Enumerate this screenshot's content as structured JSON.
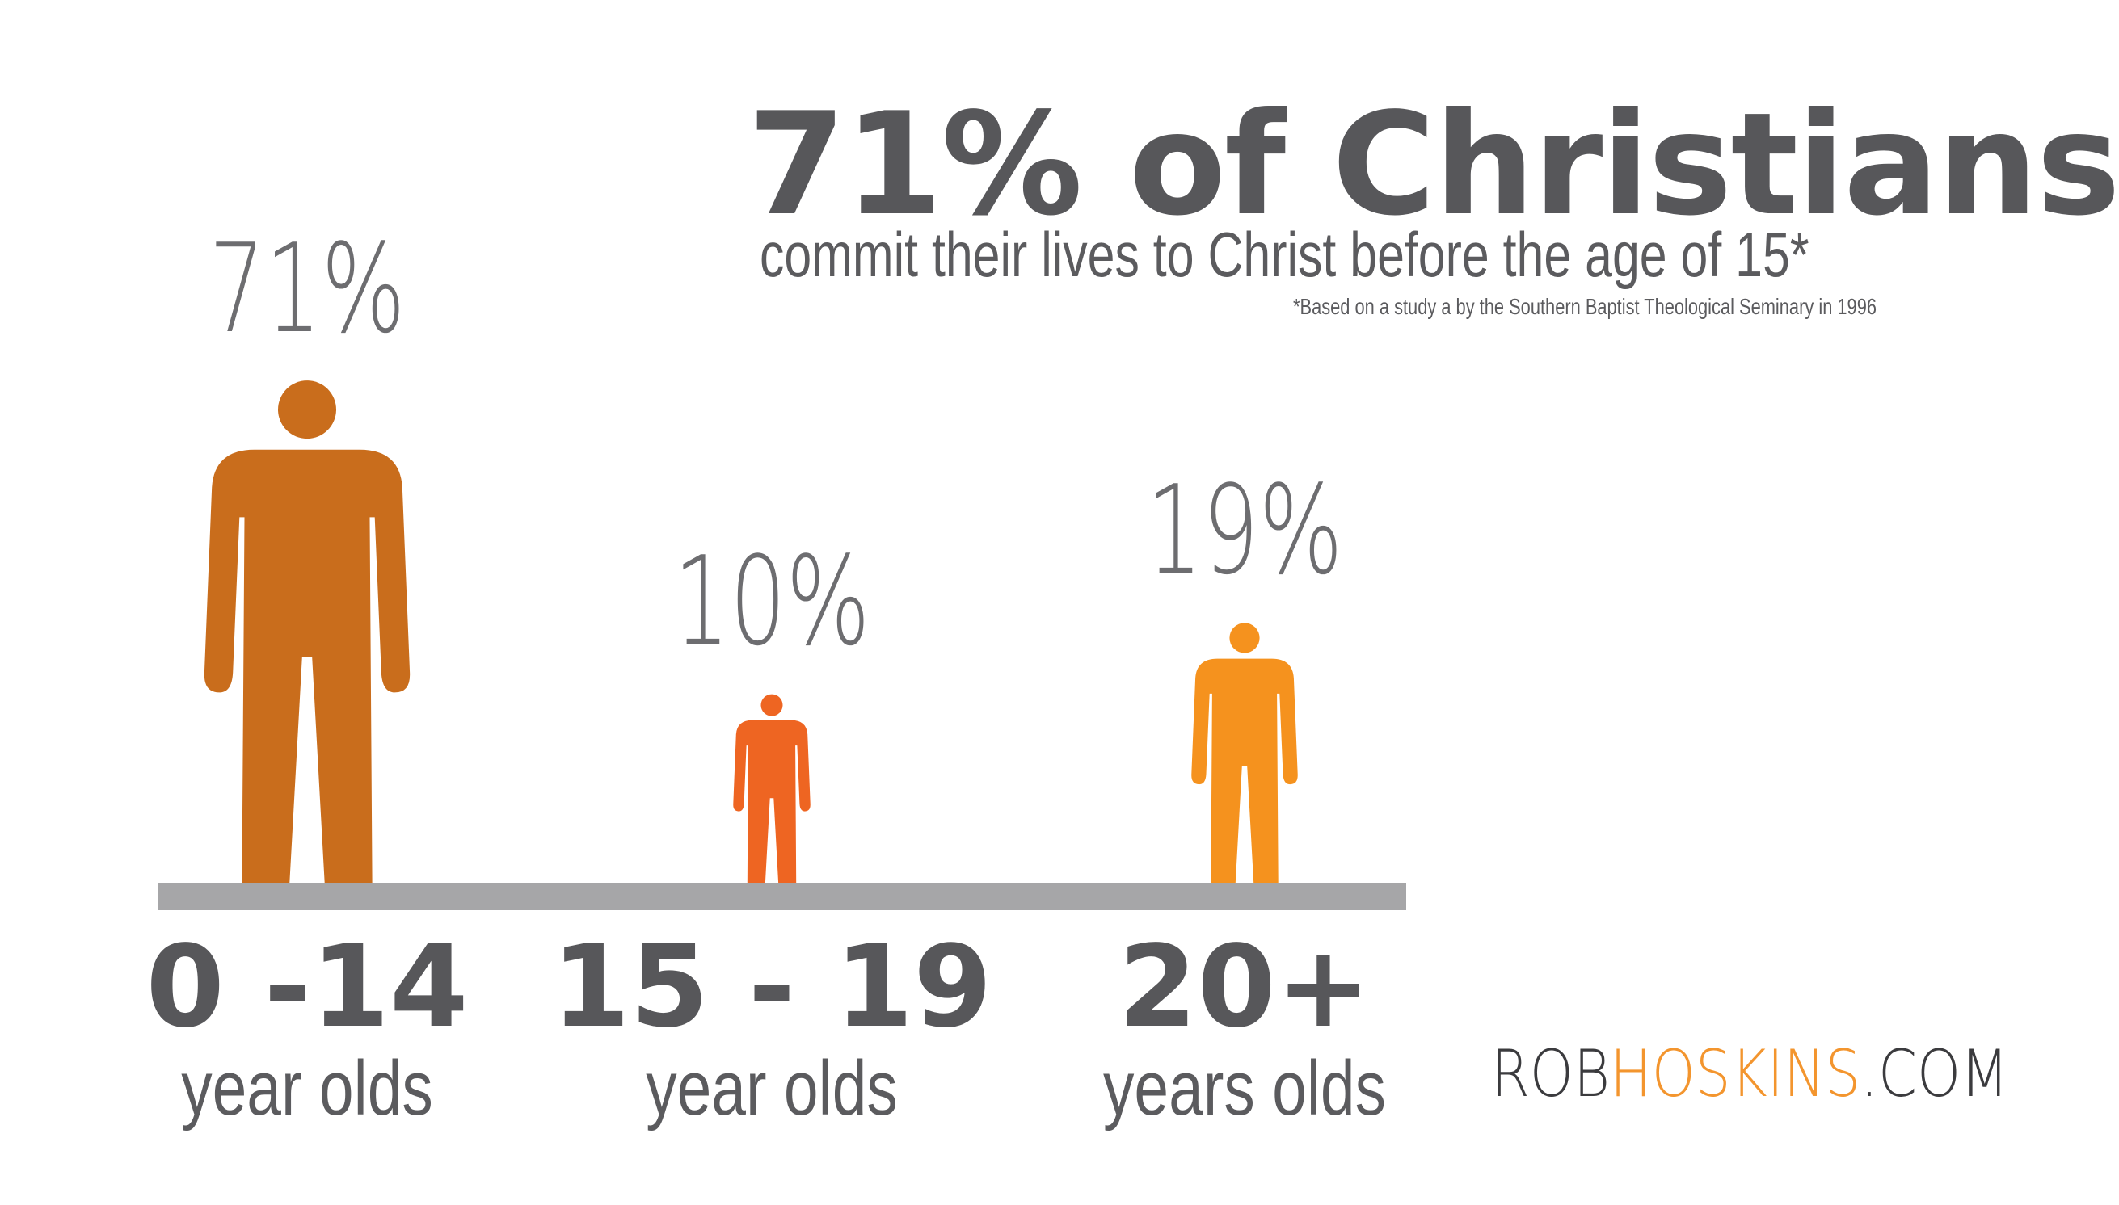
{
  "headline": "71% of Christians",
  "subheadline": "commit their lives to Christ before the age of 15*",
  "footnote": "*Based on a study a by the Southern Baptist Theological Seminary in 1996",
  "brand": {
    "part1": "ROB",
    "part2": "HOSKINS",
    "part3": ".COM"
  },
  "colors": {
    "text_dark": "#57575a",
    "ground": "#a6a6a8",
    "brand_accent": "#f3952e"
  },
  "chart_data": {
    "type": "bar",
    "mark": "person-icon",
    "categories": [
      "0 -14",
      "15 - 19",
      "20+"
    ],
    "category_units": [
      "year olds",
      "year olds",
      "years olds"
    ],
    "values": [
      71,
      10,
      19
    ],
    "value_labels": [
      "71%",
      "10%",
      "19%"
    ],
    "colors": [
      "#c96d1c",
      "#ee6522",
      "#f5921e"
    ],
    "title": "71% of Christians",
    "xlabel": "",
    "ylabel": "",
    "ylim": [
      0,
      71
    ],
    "grid": false,
    "legend": "none"
  }
}
